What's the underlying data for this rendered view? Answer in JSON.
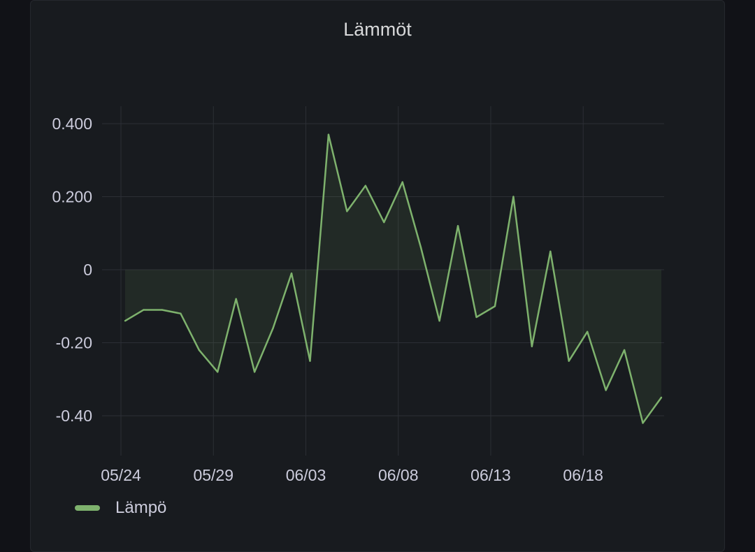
{
  "panel": {
    "title": "Lämmöt"
  },
  "colors": {
    "background": "#111217",
    "panel": "#181b1f",
    "grid": "#2c2f35",
    "series": "#7eb26d",
    "text": "#ccccdc"
  },
  "chart_data": {
    "type": "area",
    "title": "Lämmöt",
    "xlabel": "",
    "ylabel": "",
    "x": [
      "05/24",
      "05/25",
      "05/26",
      "05/27",
      "05/28",
      "05/29",
      "05/30",
      "05/31",
      "06/01",
      "06/02",
      "06/03",
      "06/04",
      "06/05",
      "06/06",
      "06/07",
      "06/08",
      "06/09",
      "06/10",
      "06/11",
      "06/12",
      "06/13",
      "06/14",
      "06/15",
      "06/16",
      "06/17",
      "06/18",
      "06/19",
      "06/20",
      "06/21",
      "06/22"
    ],
    "x_ticks": [
      "05/24",
      "05/29",
      "06/03",
      "06/08",
      "06/13",
      "06/18"
    ],
    "y_ticks": [
      0.4,
      0.2,
      0,
      -0.2,
      -0.4
    ],
    "y_tick_labels": [
      "0.400",
      "0.200",
      "0",
      "-0.20",
      "-0.40"
    ],
    "ylim": [
      -0.5,
      0.45
    ],
    "grid": true,
    "legend_position": "bottom-left",
    "series": [
      {
        "name": "Lämpö",
        "color": "#7eb26d",
        "values": [
          -0.14,
          -0.11,
          -0.11,
          -0.12,
          -0.22,
          -0.28,
          -0.08,
          -0.28,
          -0.16,
          -0.01,
          -0.25,
          0.37,
          0.16,
          0.23,
          0.13,
          0.24,
          0.06,
          -0.14,
          0.12,
          -0.13,
          -0.1,
          0.2,
          -0.21,
          0.05,
          -0.25,
          -0.17,
          -0.33,
          -0.22,
          -0.42,
          -0.35
        ]
      }
    ]
  }
}
